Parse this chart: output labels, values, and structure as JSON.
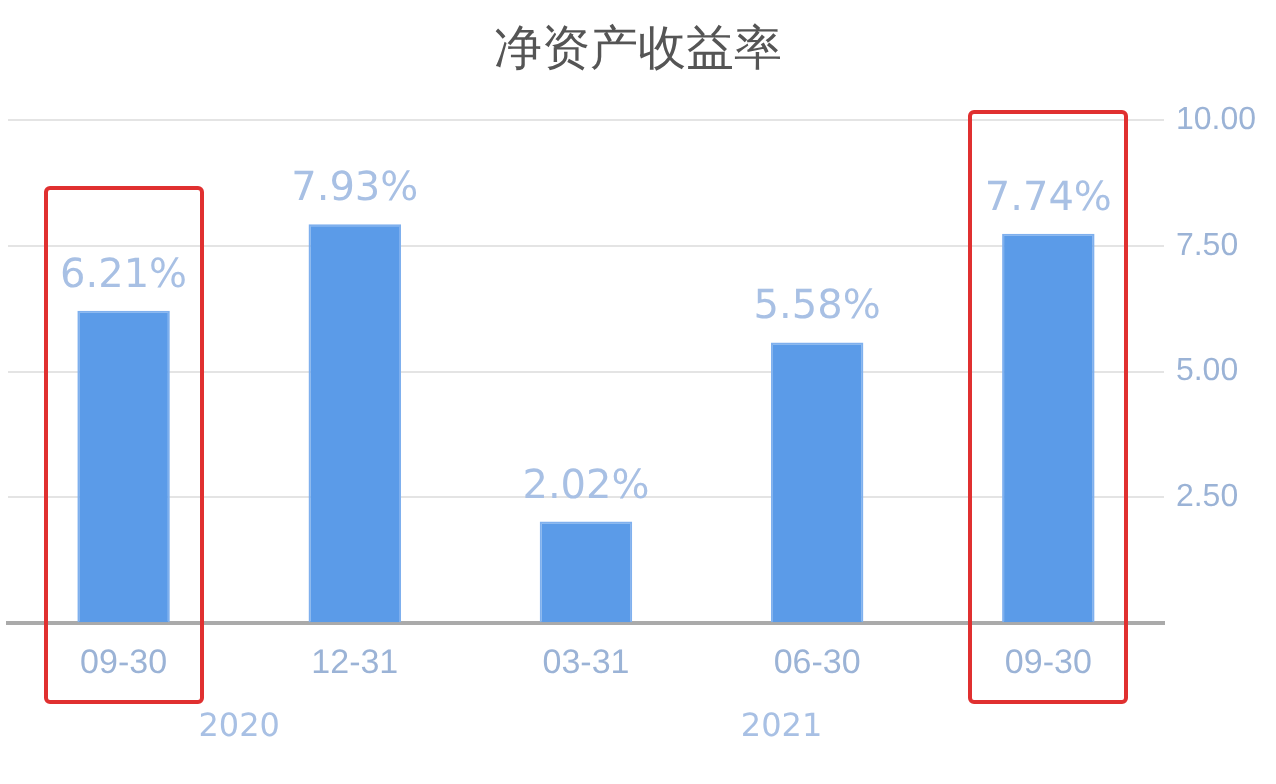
{
  "chart_data": {
    "type": "bar",
    "title": "净资产收益率",
    "categories": [
      "09-30",
      "12-31",
      "03-31",
      "06-30",
      "09-30"
    ],
    "values": [
      6.21,
      7.93,
      2.02,
      5.58,
      7.74
    ],
    "value_labels": [
      "6.21%",
      "7.93%",
      "2.02%",
      "5.58%",
      "7.74%"
    ],
    "color": "#5b9be8",
    "ylim": [
      0,
      10
    ],
    "yticks": [
      {
        "value": 0,
        "label": null
      },
      {
        "value": 2.5,
        "label": "2.50"
      },
      {
        "value": 5,
        "label": "5.00"
      },
      {
        "value": 7.5,
        "label": "7.50"
      },
      {
        "value": 10,
        "label": "10.00"
      }
    ],
    "grid": "y",
    "annotations": [
      "2020",
      "2021"
    ]
  }
}
